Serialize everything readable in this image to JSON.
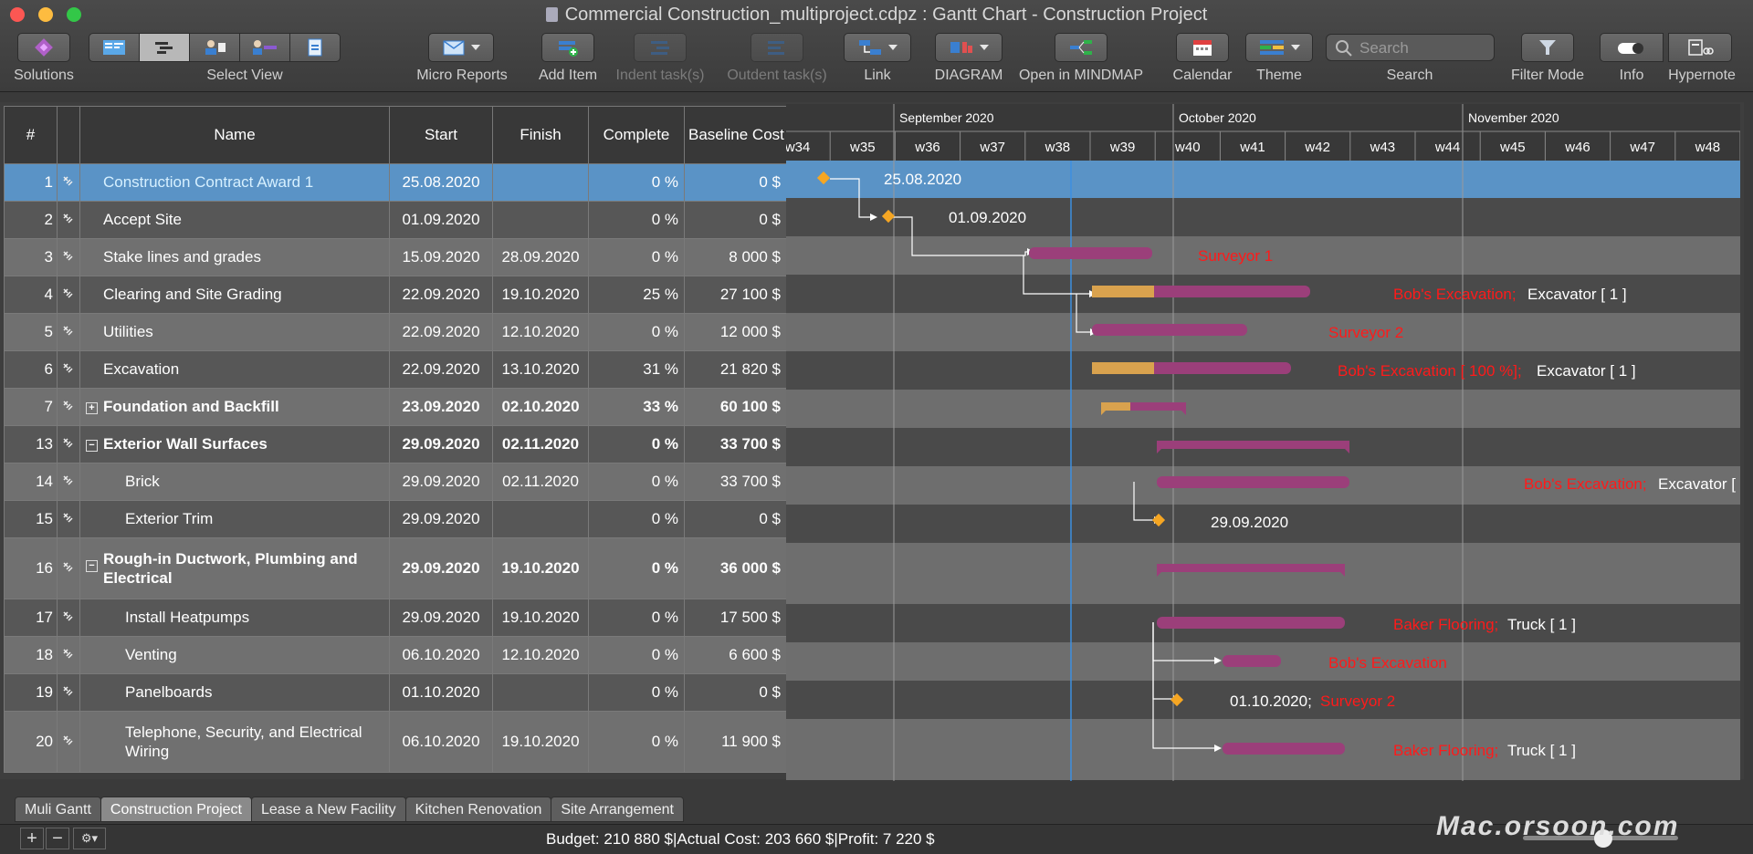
{
  "window": {
    "title": "Commercial Construction_multiproject.cdpz : Gantt Chart - Construction Project"
  },
  "toolbar": {
    "solutions": "Solutions",
    "select_view": "Select View",
    "micro_reports": "Micro Reports",
    "add_item": "Add Item",
    "indent": "Indent task(s)",
    "outdent": "Outdent task(s)",
    "link": "Link",
    "diagram": "DIAGRAM",
    "open_mindmap": "Open in MINDMAP",
    "calendar": "Calendar",
    "theme": "Theme",
    "search": "Search",
    "search_placeholder": "Search",
    "filter_mode": "Filter Mode",
    "info": "Info",
    "hypernote": "Hypernote"
  },
  "grid": {
    "headers": {
      "num": "#",
      "name": "Name",
      "start": "Start",
      "finish": "Finish",
      "complete": "Complete",
      "baseline_cost": "Baseline Cost"
    },
    "rows": [
      {
        "num": "1",
        "name": "Construction Contract Award 1",
        "start": "25.08.2020",
        "finish": "",
        "complete": "0 %",
        "cost": "0 $"
      },
      {
        "num": "2",
        "name": "Accept Site",
        "start": "01.09.2020",
        "finish": "",
        "complete": "0 %",
        "cost": "0 $"
      },
      {
        "num": "3",
        "name": "Stake lines and grades",
        "start": "15.09.2020",
        "finish": "28.09.2020",
        "complete": "0 %",
        "cost": "8 000 $"
      },
      {
        "num": "4",
        "name": "Clearing and Site Grading",
        "start": "22.09.2020",
        "finish": "19.10.2020",
        "complete": "25 %",
        "cost": "27 100 $"
      },
      {
        "num": "5",
        "name": "Utilities",
        "start": "22.09.2020",
        "finish": "12.10.2020",
        "complete": "0 %",
        "cost": "12 000 $"
      },
      {
        "num": "6",
        "name": "Excavation",
        "start": "22.09.2020",
        "finish": "13.10.2020",
        "complete": "31 %",
        "cost": "21 820 $"
      },
      {
        "num": "7",
        "name": "Foundation and Backfill",
        "start": "23.09.2020",
        "finish": "02.10.2020",
        "complete": "33 %",
        "cost": "60 100 $"
      },
      {
        "num": "13",
        "name": "Exterior Wall Surfaces",
        "start": "29.09.2020",
        "finish": "02.11.2020",
        "complete": "0 %",
        "cost": "33 700 $"
      },
      {
        "num": "14",
        "name": "Brick",
        "start": "29.09.2020",
        "finish": "02.11.2020",
        "complete": "0 %",
        "cost": "33 700 $"
      },
      {
        "num": "15",
        "name": "Exterior Trim",
        "start": "29.09.2020",
        "finish": "",
        "complete": "0 %",
        "cost": "0 $"
      },
      {
        "num": "16",
        "name": "Rough-in Ductwork, Plumbing and Electrical",
        "start": "29.09.2020",
        "finish": "19.10.2020",
        "complete": "0 %",
        "cost": "36 000 $"
      },
      {
        "num": "17",
        "name": "Install Heatpumps",
        "start": "29.09.2020",
        "finish": "19.10.2020",
        "complete": "0 %",
        "cost": "17 500 $"
      },
      {
        "num": "18",
        "name": "Venting",
        "start": "06.10.2020",
        "finish": "12.10.2020",
        "complete": "0 %",
        "cost": "6 600 $"
      },
      {
        "num": "19",
        "name": "Panelboards",
        "start": "01.10.2020",
        "finish": "",
        "complete": "0 %",
        "cost": "0 $"
      },
      {
        "num": "20",
        "name": "Telephone, Security, and Electrical Wiring",
        "start": "06.10.2020",
        "finish": "19.10.2020",
        "complete": "0 %",
        "cost": "11 900 $"
      }
    ]
  },
  "gantt": {
    "months": [
      "September 2020",
      "October 2020",
      "November 2020"
    ],
    "weeks": [
      "w34",
      "w35",
      "w36",
      "w37",
      "w38",
      "w39",
      "w40",
      "w41",
      "w42",
      "w43",
      "w44",
      "w45",
      "w46",
      "w47",
      "w48"
    ],
    "labels": {
      "r1": "25.08.2020",
      "r2": "01.09.2020",
      "r3_res": "Surveyor 1",
      "r4_res": "Bob's Excavation;",
      "r4_extra": "Excavator [ 1 ]",
      "r5_res": "Surveyor 2",
      "r6_res": "Bob's Excavation [ 100 %];",
      "r6_extra": "Excavator [ 1 ]",
      "r14_res": "Bob's Excavation;",
      "r14_extra": "Excavator [",
      "r15": "29.09.2020",
      "r17_res": "Baker Flooring;",
      "r17_extra": "Truck [ 1 ]",
      "r18_res": "Bob's Excavation",
      "r19_date": "01.10.2020;",
      "r19_res": "Surveyor 2",
      "r20_res": "Baker Flooring;",
      "r20_extra": "Truck [ 1 ]"
    },
    "colors": {
      "bar": "#9b3f7a",
      "progress": "#d9a24e",
      "milestone": "#f5a623",
      "resource": "#ff1a1a",
      "today": "#3d8fe0"
    }
  },
  "tabs": [
    "Muli Gantt",
    "Construction Project",
    "Lease a New Facility",
    "Kitchen Renovation",
    "Site Arrangement"
  ],
  "active_tab": "Construction Project",
  "status": {
    "text": "Budget: 210 880 $|Actual Cost: 203 660 $|Profit: 7 220 $",
    "watermark": "Mac.orsoon.com"
  }
}
